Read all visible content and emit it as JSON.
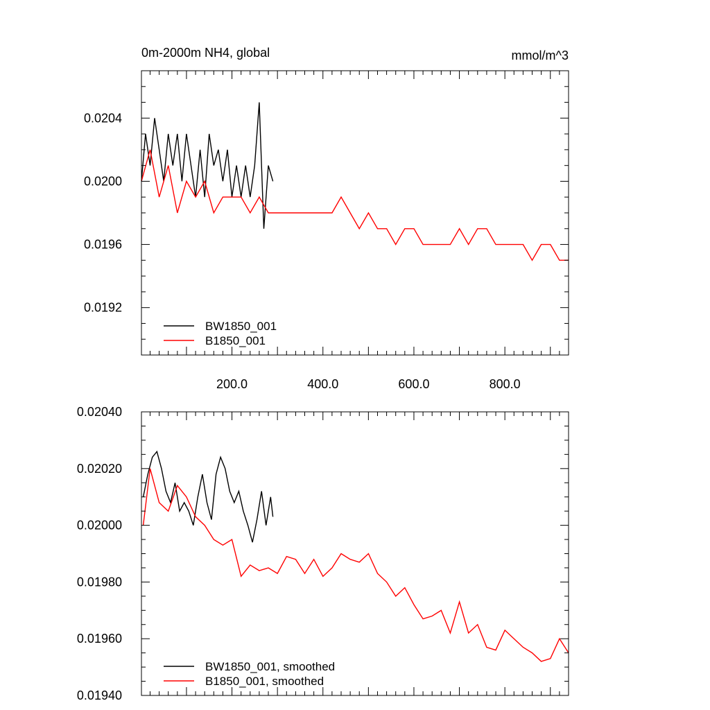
{
  "chart_data": [
    {
      "type": "line",
      "title": "0m-2000m NH4, global",
      "units": "mmol/m^3",
      "xlabel": "",
      "ylabel": "",
      "xlim": [
        1,
        940
      ],
      "ylim": [
        0.0189,
        0.0207
      ],
      "x_ticks": [
        200,
        400,
        600,
        800
      ],
      "x_tick_labels": [
        "200.0",
        "400.0",
        "600.0",
        "800.0"
      ],
      "y_ticks": [
        0.0192,
        0.0196,
        0.02,
        0.0204
      ],
      "y_tick_labels": [
        "0.0192",
        "0.0196",
        "0.0200",
        "0.0204"
      ],
      "grid": false,
      "legend_position": "bottom-left",
      "series": [
        {
          "name": "BW1850_001",
          "color": "#000000",
          "x": [
            1,
            10,
            20,
            30,
            40,
            50,
            60,
            70,
            80,
            90,
            100,
            110,
            120,
            130,
            140,
            150,
            160,
            170,
            180,
            190,
            200,
            210,
            220,
            230,
            240,
            250,
            260,
            270,
            280,
            290
          ],
          "y": [
            0.02,
            0.0203,
            0.0201,
            0.0204,
            0.0202,
            0.02,
            0.0203,
            0.0201,
            0.0203,
            0.02,
            0.0203,
            0.0201,
            0.0199,
            0.0202,
            0.0199,
            0.0203,
            0.0201,
            0.0202,
            0.02,
            0.0202,
            0.0199,
            0.0201,
            0.0199,
            0.0201,
            0.0199,
            0.0201,
            0.0205,
            0.0197,
            0.0201,
            0.02
          ]
        },
        {
          "name": "B1850_001",
          "color": "#ff0000",
          "x": [
            1,
            20,
            40,
            60,
            80,
            100,
            120,
            140,
            160,
            180,
            200,
            220,
            240,
            260,
            280,
            300,
            320,
            340,
            360,
            380,
            400,
            420,
            440,
            460,
            480,
            500,
            520,
            540,
            560,
            580,
            600,
            620,
            640,
            660,
            680,
            700,
            720,
            740,
            760,
            780,
            800,
            820,
            840,
            860,
            880,
            900,
            920,
            940
          ],
          "y": [
            0.02,
            0.0202,
            0.0199,
            0.0201,
            0.0198,
            0.02,
            0.0199,
            0.02,
            0.0198,
            0.0199,
            0.0199,
            0.0199,
            0.0198,
            0.0199,
            0.0198,
            0.0198,
            0.0198,
            0.0198,
            0.0198,
            0.0198,
            0.0198,
            0.0198,
            0.0199,
            0.0198,
            0.0197,
            0.0198,
            0.0197,
            0.0197,
            0.0196,
            0.0197,
            0.0197,
            0.0196,
            0.0196,
            0.0196,
            0.0196,
            0.0197,
            0.0196,
            0.0197,
            0.0197,
            0.0196,
            0.0196,
            0.0196,
            0.0196,
            0.0195,
            0.0196,
            0.0196,
            0.0195,
            0.0195
          ]
        }
      ]
    },
    {
      "type": "line",
      "title": "",
      "xlabel": "",
      "ylabel": "",
      "xlim": [
        1,
        940
      ],
      "ylim": [
        0.0194,
        0.0204
      ],
      "y_ticks": [
        0.0194,
        0.0196,
        0.0198,
        0.02,
        0.0202,
        0.0204
      ],
      "y_tick_labels": [
        "0.01940",
        "0.01960",
        "0.01980",
        "0.02000",
        "0.02020",
        "0.02040"
      ],
      "grid": false,
      "legend_position": "bottom-left",
      "series": [
        {
          "name": "BW1850_001, smoothed",
          "color": "#000000",
          "x": [
            5,
            15,
            25,
            35,
            45,
            55,
            65,
            75,
            85,
            95,
            105,
            115,
            125,
            135,
            145,
            155,
            165,
            175,
            185,
            195,
            205,
            215,
            225,
            235,
            245,
            255,
            265,
            275,
            285,
            290
          ],
          "y": [
            0.0201,
            0.02018,
            0.02024,
            0.02026,
            0.0202,
            0.02012,
            0.02008,
            0.02015,
            0.02005,
            0.02008,
            0.02005,
            0.02,
            0.0201,
            0.02018,
            0.02008,
            0.02002,
            0.02018,
            0.02024,
            0.0202,
            0.02012,
            0.02008,
            0.02012,
            0.02005,
            0.02,
            0.01994,
            0.02002,
            0.02012,
            0.02,
            0.0201,
            0.02003
          ]
        },
        {
          "name": "B1850_001, smoothed",
          "color": "#ff0000",
          "x": [
            5,
            20,
            40,
            60,
            80,
            100,
            120,
            140,
            160,
            180,
            200,
            220,
            240,
            260,
            280,
            300,
            320,
            340,
            360,
            380,
            400,
            420,
            440,
            460,
            480,
            500,
            520,
            540,
            560,
            580,
            600,
            620,
            640,
            660,
            680,
            700,
            720,
            740,
            760,
            780,
            800,
            820,
            840,
            860,
            880,
            900,
            920,
            940
          ],
          "y": [
            0.02,
            0.0202,
            0.02008,
            0.02005,
            0.02014,
            0.0201,
            0.02003,
            0.02,
            0.01995,
            0.01993,
            0.01995,
            0.01982,
            0.01986,
            0.01984,
            0.01985,
            0.01983,
            0.01989,
            0.01988,
            0.01983,
            0.01988,
            0.01982,
            0.01985,
            0.0199,
            0.01988,
            0.01987,
            0.0199,
            0.01983,
            0.0198,
            0.01975,
            0.01978,
            0.01972,
            0.01967,
            0.01968,
            0.0197,
            0.01962,
            0.01973,
            0.01962,
            0.01965,
            0.01957,
            0.01956,
            0.01963,
            0.0196,
            0.01957,
            0.01955,
            0.01952,
            0.01953,
            0.0196,
            0.01955
          ]
        }
      ]
    }
  ]
}
